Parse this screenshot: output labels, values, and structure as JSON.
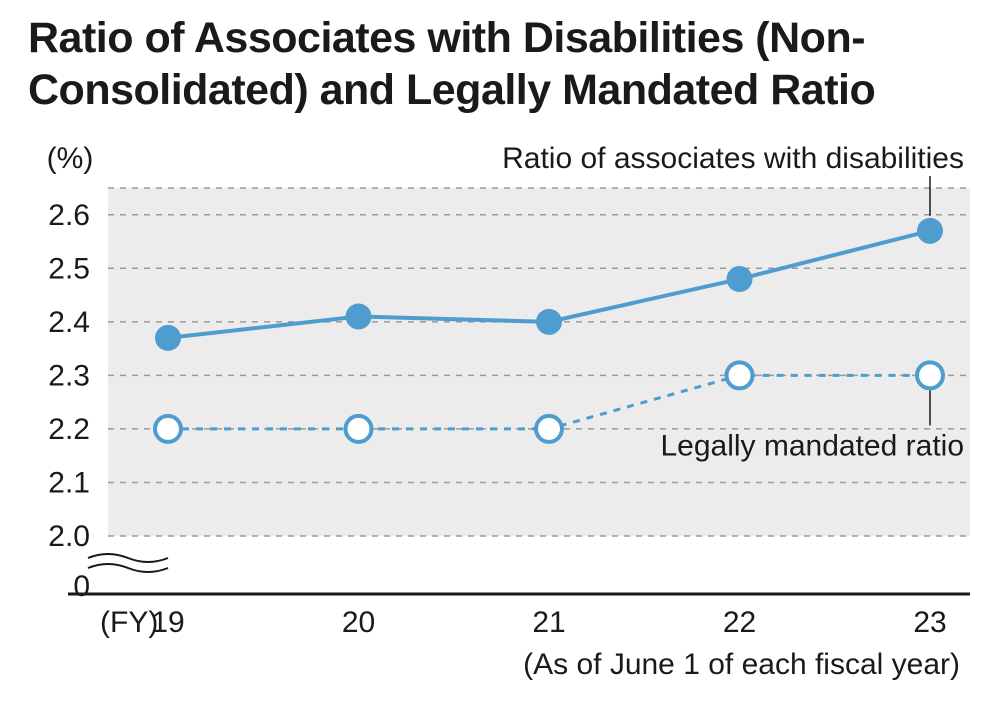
{
  "title": "Ratio of Associates with Disabilities (Non-Consolidated) and Legally Mandated Ratio",
  "chart": {
    "type": "line",
    "y_unit_label": "(%)",
    "x_prefix": "(FY)",
    "x_caption": "(As of June 1 of each fiscal year)",
    "series1_label": "Ratio of associates with disabilities",
    "series2_label": "Legally mandated ratio",
    "categories": [
      "19",
      "20",
      "21",
      "22",
      "23"
    ],
    "series1_values": [
      2.37,
      2.41,
      2.4,
      2.48,
      2.57
    ],
    "series2_values": [
      2.2,
      2.2,
      2.2,
      2.3,
      2.3
    ],
    "yticks": [
      "2.0",
      "2.1",
      "2.2",
      "2.3",
      "2.4",
      "2.5",
      "2.6"
    ],
    "ylim": [
      2.0,
      2.65
    ],
    "zero_label": "0",
    "plot_background": "#ececec",
    "page_background": "#ffffff",
    "grid_color": "#9a9a9a",
    "grid_dash": "6,6",
    "axis_color": "#1a1a1a",
    "series1_color": "#4f9dcf",
    "series1_line_width": 4,
    "series1_marker_radius": 13,
    "series1_marker_fill": "#4f9dcf",
    "series1_dash": "none",
    "series2_color": "#4f9dcf",
    "series2_line_width": 3,
    "series2_marker_radius": 13,
    "series2_marker_fill": "#ffffff",
    "series2_marker_stroke_width": 4,
    "series2_dash": "7,7",
    "title_fontsize": 43,
    "tick_fontsize": 30,
    "label_fontsize": 30,
    "caption_fontsize": 30
  }
}
